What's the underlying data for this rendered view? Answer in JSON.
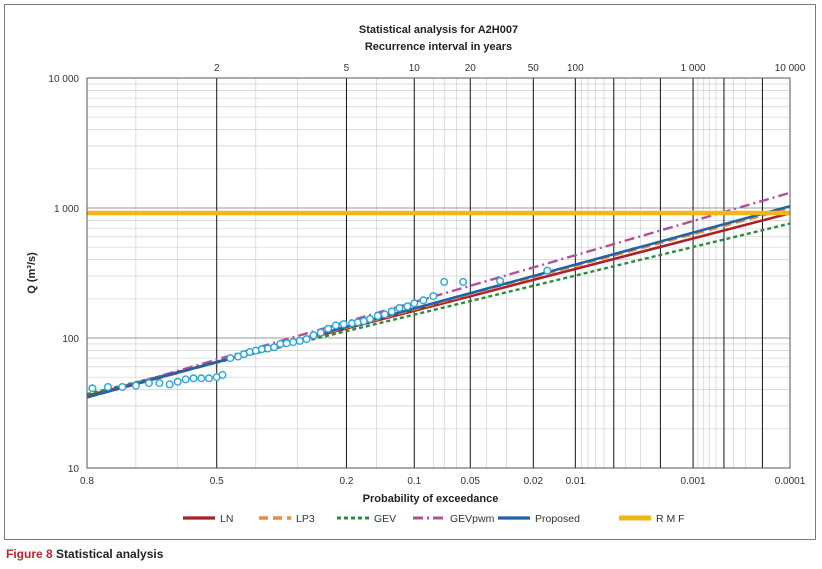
{
  "chart_data": {
    "type": "line",
    "title": "Statistical analysis for A2H007",
    "subtitle": "Recurrence interval in years",
    "xlabel": "Probability of exceedance",
    "ylabel": "Q (m³/s)",
    "y_scale": "log",
    "x_scale": "normal-probability",
    "xlim": [
      0.8,
      0.0001
    ],
    "ylim": [
      10,
      10000
    ],
    "y_ticks": [
      {
        "v": 10,
        "label": "10"
      },
      {
        "v": 100,
        "label": "100"
      },
      {
        "v": 1000,
        "label": "1 000"
      },
      {
        "v": 10000,
        "label": "10 000"
      }
    ],
    "bottom_ticks": [
      {
        "p": 0.8,
        "label": "0.8"
      },
      {
        "p": 0.5,
        "label": "0.5"
      },
      {
        "p": 0.2,
        "label": "0.2"
      },
      {
        "p": 0.1,
        "label": "0.1"
      },
      {
        "p": 0.05,
        "label": "0.05"
      },
      {
        "p": 0.02,
        "label": "0.02"
      },
      {
        "p": 0.01,
        "label": "0.01"
      },
      {
        "p": 0.001,
        "label": "0.001"
      },
      {
        "p": 0.0001,
        "label": "0.0001"
      }
    ],
    "top_ticks": [
      {
        "p": 0.5,
        "label": "2"
      },
      {
        "p": 0.2,
        "label": "5"
      },
      {
        "p": 0.1,
        "label": "10"
      },
      {
        "p": 0.05,
        "label": "20"
      },
      {
        "p": 0.02,
        "label": "50"
      },
      {
        "p": 0.01,
        "label": "100"
      },
      {
        "p": 0.001,
        "label": "1 000"
      },
      {
        "p": 0.0001,
        "label": "10 000"
      }
    ],
    "major_vlines": [
      0.5,
      0.2,
      0.1,
      0.05,
      0.02,
      0.01,
      0.005,
      0.002,
      0.001,
      0.0005,
      0.0002
    ],
    "minor_vlines": [
      0.7,
      0.6,
      0.4,
      0.3,
      0.15,
      0.08,
      0.07,
      0.06,
      0.04,
      0.03,
      0.009,
      0.008,
      0.007,
      0.006,
      0.004,
      0.003,
      0.0009,
      0.0008,
      0.0007,
      0.0006,
      0.0004,
      0.0003
    ],
    "grid": true,
    "legend_position": "bottom",
    "series": [
      {
        "name": "LN",
        "style": "solid",
        "color": "#a8232a",
        "p": [
          0.8,
          0.0001
        ],
        "q": [
          36,
          910
        ]
      },
      {
        "name": "LP3",
        "style": "dashed",
        "color": "#ef8a3a",
        "p": [
          0.8,
          0.0001
        ],
        "q": [
          35,
          1000
        ]
      },
      {
        "name": "GEV",
        "style": "dotted",
        "color": "#2e8b3e",
        "p": [
          0.8,
          0.0001
        ],
        "q": [
          37,
          760
        ]
      },
      {
        "name": "GEVpwm",
        "style": "dashdot",
        "color": "#b0509c",
        "p": [
          0.8,
          0.0001
        ],
        "q": [
          35,
          1310
        ]
      },
      {
        "name": "Proposed",
        "style": "solid",
        "color": "#1f63a8",
        "p": [
          0.8,
          0.0001
        ],
        "q": [
          35,
          1030
        ]
      },
      {
        "name": "R M F",
        "style": "thick",
        "color": "#f2b51d",
        "p": [
          0.8,
          0.0001
        ],
        "q": [
          915,
          915
        ]
      }
    ],
    "observed": {
      "color": "#2aa6d8",
      "p": [
        0.79,
        0.76,
        0.73,
        0.7,
        0.67,
        0.645,
        0.62,
        0.6,
        0.58,
        0.56,
        0.54,
        0.52,
        0.5,
        0.485,
        0.465,
        0.445,
        0.43,
        0.415,
        0.4,
        0.385,
        0.37,
        0.355,
        0.34,
        0.325,
        0.31,
        0.295,
        0.28,
        0.265,
        0.25,
        0.235,
        0.22,
        0.205,
        0.19,
        0.18,
        0.17,
        0.16,
        0.148,
        0.138,
        0.128,
        0.118,
        0.108,
        0.1,
        0.09,
        0.08,
        0.07,
        0.055,
        0.033,
        0.016
      ],
      "q": [
        41,
        42,
        42,
        43,
        45,
        45,
        44,
        46,
        48,
        49,
        49,
        49,
        50,
        52,
        70,
        72,
        75,
        78,
        80,
        82,
        83,
        85,
        90,
        91,
        93,
        95,
        98,
        105,
        110,
        118,
        125,
        128,
        130,
        132,
        135,
        140,
        148,
        152,
        160,
        170,
        175,
        185,
        195,
        210,
        270,
        270,
        275,
        330
      ]
    }
  },
  "caption": {
    "number": "Figure 8",
    "text": " Statistical analysis"
  }
}
